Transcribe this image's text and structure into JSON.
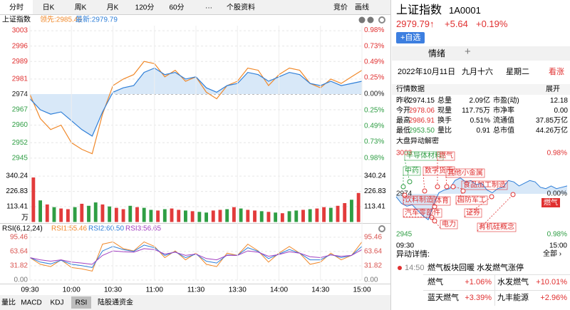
{
  "tabs": {
    "top": [
      "分时",
      "日K",
      "周K",
      "月K",
      "120分",
      "60分",
      "···",
      "个股资料"
    ],
    "tools": [
      "竞价",
      "画线"
    ],
    "bottom": [
      "量比",
      "MACD",
      "KDJ",
      "RSI",
      "陆股通资金"
    ]
  },
  "chart_data": [
    {
      "type": "line",
      "title": "上证指数",
      "grid": true,
      "series": [
        {
          "name": "领先:2985.45",
          "color": "#f0892b",
          "values": [
            2974,
            2963,
            2958,
            2960,
            2952,
            2949,
            2947,
            2965,
            2978,
            2981,
            2983,
            2989,
            2988,
            2982,
            2985,
            2980,
            2982,
            2975,
            2972,
            2978,
            2980,
            2986,
            2985,
            2978,
            2983,
            2986,
            2985,
            2979,
            2977,
            2981,
            2979,
            2982,
            2985
          ]
        },
        {
          "name": "最新:2979.79",
          "color": "#2f7fd8",
          "fill": "#d8e8f8",
          "values": [
            2972,
            2967,
            2965,
            2966,
            2962,
            2958,
            2955,
            2966,
            2975,
            2977,
            2978,
            2984,
            2986,
            2983,
            2984,
            2981,
            2982,
            2977,
            2975,
            2978,
            2979,
            2984,
            2983,
            2980,
            2982,
            2984,
            2983,
            2979,
            2978,
            2980,
            2978,
            2979,
            2980
          ]
        }
      ],
      "ylim": [
        2943,
        3005.3
      ],
      "yticks": [
        3003,
        2996,
        2989,
        2981,
        2974,
        2967,
        2960,
        2952,
        2945
      ],
      "y2lim": [
        -1.047,
        1.047
      ],
      "y2ticks": [
        {
          "value": 0.98,
          "label": "0.98%"
        },
        {
          "value": 0.73,
          "label": "0.73%"
        },
        {
          "value": 0.49,
          "label": "0.49%"
        },
        {
          "value": 0.25,
          "label": "0.25%"
        },
        {
          "value": 0,
          "label": "0.00%"
        },
        {
          "value": -0.25,
          "label": "0.25%"
        },
        {
          "value": -0.49,
          "label": "0.49%"
        },
        {
          "value": -0.73,
          "label": "0.73%"
        },
        {
          "value": -0.98,
          "label": "0.98%"
        }
      ]
    },
    {
      "type": "bar",
      "unit": "万",
      "grid": true,
      "values": [
        330,
        160,
        130,
        110,
        100,
        95,
        110,
        135,
        120,
        145,
        130,
        115,
        105,
        95,
        120,
        110,
        105,
        90,
        85,
        95,
        100,
        90,
        85,
        80,
        75,
        70,
        85,
        90,
        95,
        110,
        100,
        90,
        85,
        80,
        75,
        70,
        65,
        80,
        85,
        90,
        95,
        100,
        110,
        105,
        120,
        140,
        165,
        215
      ],
      "colors": [
        "#e23b3b",
        "#2f9e44",
        "#e23b3b",
        "#2f9e44",
        "#e23b3b",
        "#e23b3b",
        "#2f9e44",
        "#e23b3b",
        "#2f9e44",
        "#2f9e44",
        "#e23b3b",
        "#2f9e44",
        "#e23b3b",
        "#e23b3b",
        "#2f9e44",
        "#e23b3b",
        "#2f9e44",
        "#2f9e44",
        "#e23b3b",
        "#2f9e44",
        "#e23b3b",
        "#e23b3b",
        "#2f9e44",
        "#e23b3b",
        "#2f9e44",
        "#2f9e44",
        "#e23b3b",
        "#e23b3b",
        "#2f9e44",
        "#e23b3b",
        "#2f9e44",
        "#e23b3b",
        "#e23b3b",
        "#2f9e44",
        "#e23b3b",
        "#2f9e44",
        "#e23b3b",
        "#2f9e44",
        "#2f9e44",
        "#e23b3b",
        "#2f9e44",
        "#e23b3b",
        "#e23b3b",
        "#2f9e44",
        "#e23b3b",
        "#e23b3b",
        "#2f9e44",
        "#e23b3b"
      ],
      "ylim": [
        0,
        420
      ],
      "yticks": [
        113.41,
        226.83,
        340.24
      ]
    },
    {
      "type": "line",
      "title": "RSI(6,12,24)",
      "grid": true,
      "series": [
        {
          "name": "RSI1:55.46",
          "color": "#f0892b",
          "values": [
            50,
            35,
            30,
            45,
            28,
            25,
            20,
            80,
            85,
            70,
            65,
            85,
            75,
            50,
            65,
            45,
            60,
            35,
            30,
            60,
            55,
            80,
            65,
            40,
            60,
            75,
            60,
            35,
            40,
            60,
            45,
            55,
            85
          ]
        },
        {
          "name": "RSI2:60.50",
          "color": "#2f7fd8",
          "values": [
            50,
            40,
            36,
            44,
            35,
            32,
            28,
            65,
            75,
            68,
            64,
            78,
            72,
            55,
            63,
            50,
            58,
            42,
            38,
            56,
            55,
            72,
            64,
            48,
            58,
            68,
            60,
            45,
            45,
            57,
            50,
            55,
            75
          ]
        },
        {
          "name": "RSI3:56.65",
          "color": "#a23fc0",
          "values": [
            50,
            45,
            42,
            45,
            40,
            38,
            35,
            55,
            65,
            63,
            62,
            70,
            68,
            58,
            62,
            55,
            58,
            48,
            45,
            55,
            55,
            65,
            62,
            53,
            57,
            63,
            60,
            52,
            50,
            56,
            53,
            55,
            68
          ]
        }
      ],
      "ylim": [
        0,
        100
      ],
      "yticks": [
        {
          "value": 0,
          "label": "0.00"
        },
        31.82,
        63.64,
        95.46
      ],
      "x_labels": [
        "09:30",
        "10:00",
        "10:30",
        "11:00",
        "11:30",
        "13:30",
        "14:00",
        "14:30",
        "15:00"
      ]
    }
  ],
  "side": {
    "name": "上证指数",
    "code": "1A0001",
    "price": "2979.79↑",
    "change": "+5.64",
    "pct": "+0.19%",
    "watch": "+自选",
    "tab": "情绪",
    "tab_add": "+",
    "date": "2022年10月11日",
    "lunar": "九月十六",
    "weekday": "星期二",
    "mood": "看涨",
    "quote": {
      "title": "行情数据",
      "expand": "展开",
      "rows": [
        [
          "昨收",
          "2974.15",
          "总量",
          "2.09亿",
          "市盈(动)",
          "12.18"
        ],
        [
          "今开",
          "2978.06",
          "现量",
          "117.75万",
          "市净率",
          "0.00"
        ],
        [
          "最高",
          "2986.91",
          "换手",
          "0.51%",
          "流通值",
          "37.85万亿"
        ],
        [
          "最低",
          "2953.50",
          "量比",
          "0.91",
          "总市值",
          "44.26万亿"
        ]
      ]
    },
    "moves": {
      "title": "大盘异动解密",
      "ylabels_left": [
        "3003",
        "2974",
        "2945"
      ],
      "ylabels_right": [
        "0.98%",
        "0.00%",
        "0.98%"
      ],
      "x_labels": [
        "09:30",
        "15:00"
      ],
      "tags": [
        "半导体材料",
        "燃气",
        "中药",
        "数字货币",
        "其他小金属",
        "食品加工制造",
        "饮料制造",
        "体育",
        "国防军工",
        "汽车零部件",
        "证券",
        "电力",
        "有机硅概念"
      ],
      "highlight": "燃气"
    },
    "detail": {
      "title": "异动详情:",
      "all": "全部 ›",
      "time": "14:50",
      "text": "燃气板块回暖 水发燃气涨停",
      "rows": [
        [
          "燃气",
          "+1.06%",
          "水发燃气",
          "+10.01%"
        ],
        [
          "蓝天燃气",
          "+3.39%",
          "九丰能源",
          "+2.96%"
        ]
      ]
    }
  }
}
